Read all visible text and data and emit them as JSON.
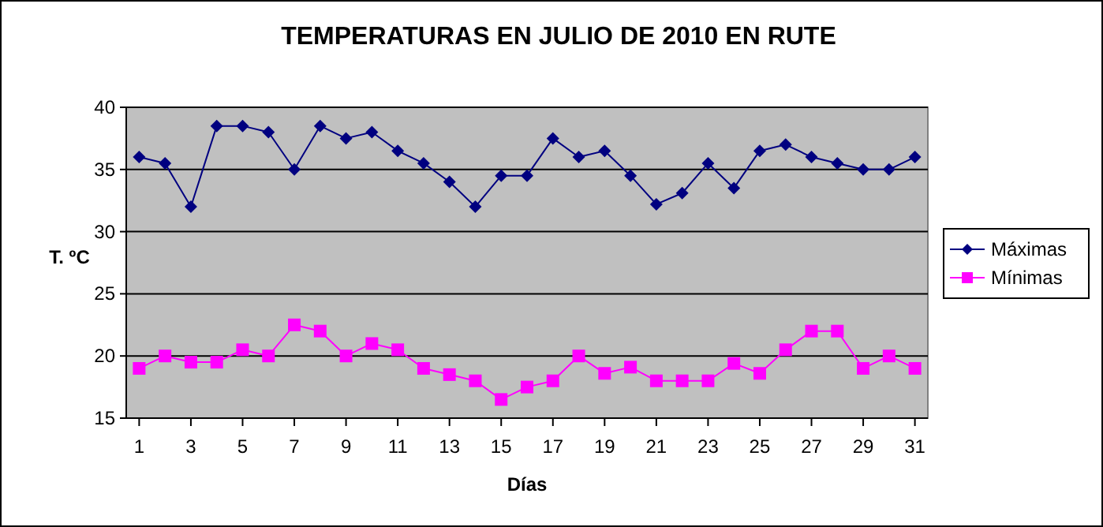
{
  "chart_data": {
    "type": "line",
    "title": "TEMPERATURAS EN JULIO DE 2010 EN RUTE",
    "xlabel": "Días",
    "ylabel": "T. ºC",
    "x": [
      1,
      2,
      3,
      4,
      5,
      6,
      7,
      8,
      9,
      10,
      11,
      12,
      13,
      14,
      15,
      16,
      17,
      18,
      19,
      20,
      21,
      22,
      23,
      24,
      25,
      26,
      27,
      28,
      29,
      30,
      31
    ],
    "xlim": [
      0.5,
      31.5
    ],
    "xticks": [
      1,
      3,
      5,
      7,
      9,
      11,
      13,
      15,
      17,
      19,
      21,
      23,
      25,
      27,
      29,
      31
    ],
    "series": [
      {
        "name": "Máximas",
        "color": "#000080",
        "marker": "diamond",
        "values": [
          36,
          35.5,
          32,
          38.5,
          38.5,
          38,
          35,
          38.5,
          37.5,
          38,
          36.5,
          35.5,
          34,
          32,
          34.5,
          34.5,
          37.5,
          36,
          36.5,
          34.5,
          32.2,
          33.1,
          35.5,
          33.5,
          36.5,
          37,
          36,
          35.5,
          35,
          35,
          36
        ]
      },
      {
        "name": "Mínimas",
        "color": "#ff00ff",
        "marker": "square",
        "values": [
          19,
          20,
          19.5,
          19.5,
          20.5,
          20,
          22.5,
          22,
          20,
          21,
          20.5,
          19,
          18.5,
          18,
          16.5,
          17.5,
          18,
          20,
          18.6,
          19.1,
          18,
          18,
          18,
          19.4,
          18.6,
          20.5,
          22,
          22,
          19,
          20,
          19
        ]
      }
    ],
    "ylim": [
      15,
      40
    ],
    "yticks": [
      15,
      20,
      25,
      30,
      35,
      40
    ],
    "grid": "y",
    "legend": "right"
  }
}
